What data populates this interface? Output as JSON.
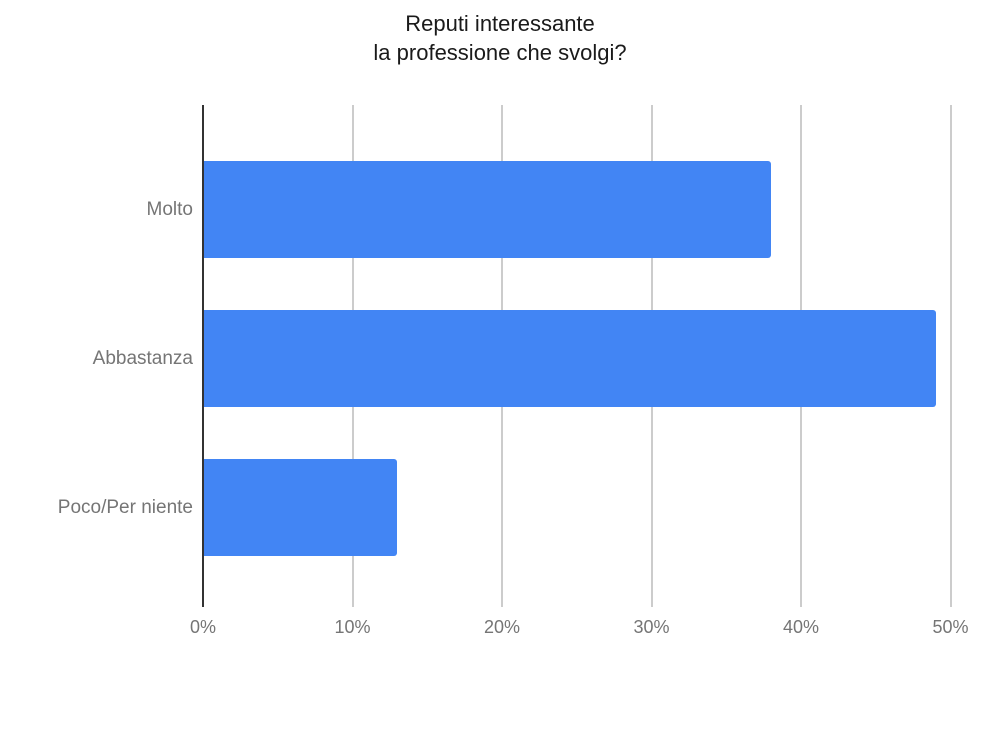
{
  "chart_data": {
    "type": "bar",
    "orientation": "horizontal",
    "title": "Reputi interessante la professione che svolgi?",
    "title_lines": [
      "Reputi interessante",
      "la professione che svolgi?"
    ],
    "categories": [
      "Molto",
      "Abbastanza",
      "Poco/Per niente"
    ],
    "values": [
      38,
      49,
      13
    ],
    "unit": "%",
    "xlabel": "",
    "ylabel": "",
    "xlim": [
      0,
      50
    ],
    "x_ticks": [
      "0%",
      "10%",
      "20%",
      "30%",
      "40%",
      "50%"
    ],
    "x_tick_values": [
      0,
      10,
      20,
      30,
      40,
      50
    ],
    "grid": true,
    "legend": "none",
    "colors": {
      "bar": "#4285f4",
      "axis_line": "#333333",
      "gridline": "#cccccc",
      "tick_label": "#757575",
      "category_label": "#757575",
      "title": "#1a1a1a",
      "background": "#ffffff"
    }
  }
}
